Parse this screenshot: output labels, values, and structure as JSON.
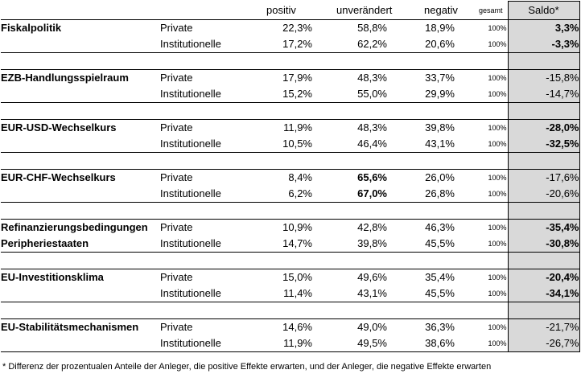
{
  "header": {
    "positive": "positiv",
    "unchanged": "unverändert",
    "negative": "negativ",
    "total": "gesamt",
    "saldo": "Saldo*"
  },
  "sections": [
    {
      "topic": [
        "Fiskalpolitik",
        ""
      ],
      "rows": [
        {
          "group": "Private",
          "positive": "22,3%",
          "unchanged": "58,8%",
          "negative": "18,9%",
          "total": "100%",
          "saldo": "3,3%",
          "saldo_bold": true,
          "unchanged_bold": false
        },
        {
          "group": "Institutionelle",
          "positive": "17,2%",
          "unchanged": "62,2%",
          "negative": "20,6%",
          "total": "100%",
          "saldo": "-3,3%",
          "saldo_bold": true,
          "unchanged_bold": false
        }
      ]
    },
    {
      "topic": [
        "EZB-Handlungsspielraum",
        ""
      ],
      "rows": [
        {
          "group": "Private",
          "positive": "17,9%",
          "unchanged": "48,3%",
          "negative": "33,7%",
          "total": "100%",
          "saldo": "-15,8%",
          "saldo_bold": false,
          "unchanged_bold": false
        },
        {
          "group": "Institutionelle",
          "positive": "15,2%",
          "unchanged": "55,0%",
          "negative": "29,9%",
          "total": "100%",
          "saldo": "-14,7%",
          "saldo_bold": false,
          "unchanged_bold": false
        }
      ]
    },
    {
      "topic": [
        "EUR-USD-Wechselkurs",
        ""
      ],
      "rows": [
        {
          "group": "Private",
          "positive": "11,9%",
          "unchanged": "48,3%",
          "negative": "39,8%",
          "total": "100%",
          "saldo": "-28,0%",
          "saldo_bold": true,
          "unchanged_bold": false
        },
        {
          "group": "Institutionelle",
          "positive": "10,5%",
          "unchanged": "46,4%",
          "negative": "43,1%",
          "total": "100%",
          "saldo": "-32,5%",
          "saldo_bold": true,
          "unchanged_bold": false
        }
      ]
    },
    {
      "topic": [
        "EUR-CHF-Wechselkurs",
        ""
      ],
      "rows": [
        {
          "group": "Private",
          "positive": "8,4%",
          "unchanged": "65,6%",
          "negative": "26,0%",
          "total": "100%",
          "saldo": "-17,6%",
          "saldo_bold": false,
          "unchanged_bold": true
        },
        {
          "group": "Institutionelle",
          "positive": "6,2%",
          "unchanged": "67,0%",
          "negative": "26,8%",
          "total": "100%",
          "saldo": "-20,6%",
          "saldo_bold": false,
          "unchanged_bold": true
        }
      ]
    },
    {
      "topic": [
        "Refinanzierungsbedingungen",
        "Peripheriestaaten"
      ],
      "rows": [
        {
          "group": "Private",
          "positive": "10,9%",
          "unchanged": "42,8%",
          "negative": "46,3%",
          "total": "100%",
          "saldo": "-35,4%",
          "saldo_bold": true,
          "unchanged_bold": false
        },
        {
          "group": "Institutionelle",
          "positive": "14,7%",
          "unchanged": "39,8%",
          "negative": "45,5%",
          "total": "100%",
          "saldo": "-30,8%",
          "saldo_bold": true,
          "unchanged_bold": false
        }
      ]
    },
    {
      "topic": [
        "EU-Investitionsklima",
        ""
      ],
      "rows": [
        {
          "group": "Private",
          "positive": "15,0%",
          "unchanged": "49,6%",
          "negative": "35,4%",
          "total": "100%",
          "saldo": "-20,4%",
          "saldo_bold": true,
          "unchanged_bold": false
        },
        {
          "group": "Institutionelle",
          "positive": "11,4%",
          "unchanged": "43,1%",
          "negative": "45,5%",
          "total": "100%",
          "saldo": "-34,1%",
          "saldo_bold": true,
          "unchanged_bold": false
        }
      ]
    },
    {
      "topic": [
        "EU-Stabilitätsmechanismen",
        ""
      ],
      "rows": [
        {
          "group": "Private",
          "positive": "14,6%",
          "unchanged": "49,0%",
          "negative": "36,3%",
          "total": "100%",
          "saldo": "-21,7%",
          "saldo_bold": false,
          "unchanged_bold": false
        },
        {
          "group": "Institutionelle",
          "positive": "11,9%",
          "unchanged": "49,5%",
          "negative": "38,6%",
          "total": "100%",
          "saldo": "-26,7%",
          "saldo_bold": false,
          "unchanged_bold": false
        }
      ]
    }
  ],
  "footnote": "* Differenz der prozentualen Anteile der Anleger, die positive Effekte erwarten, und der Anleger, die negative Effekte erwarten",
  "colors": {
    "saldo_background": "#d9d9d9",
    "border": "#000000"
  }
}
